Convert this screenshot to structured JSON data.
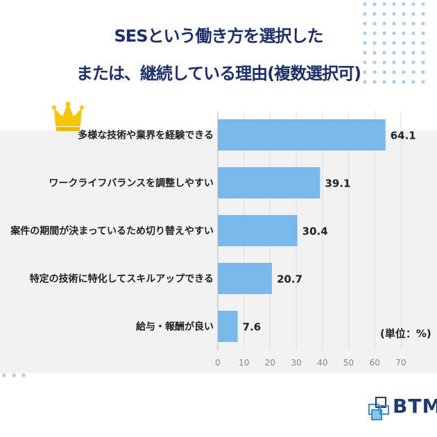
{
  "title": {
    "line1": "SESという働き方を選択した",
    "line2": "または、継続している理由(複数選択可)"
  },
  "unit_label": "(単位：%)",
  "logo": {
    "text": "BTM",
    "icon": "cube-stack-icon"
  },
  "colors": {
    "bar": "#7ab8ea",
    "title": "#1c2f6b",
    "crown": "#f7c600",
    "dots": "#a9cdee"
  },
  "icons": {
    "top_rank": "crown-icon"
  },
  "chart_data": {
    "type": "bar",
    "orientation": "horizontal",
    "categories": [
      "多様な技術や業界を経験できる",
      "ワークライフバランスを調整しやすい",
      "案件の期間が決まっているため切り替えやすい",
      "特定の技術に特化してスキルアップできる",
      "給与・報酬が良い"
    ],
    "values": [
      64.1,
      39.1,
      30.4,
      20.7,
      7.6
    ],
    "value_labels": [
      "64.1",
      "39.1",
      "30.4",
      "20.7",
      "7.6"
    ],
    "xlim": [
      0,
      70
    ],
    "xticks": [
      "0",
      "10",
      "20",
      "30",
      "40",
      "50",
      "60",
      "70"
    ],
    "grid": true
  }
}
